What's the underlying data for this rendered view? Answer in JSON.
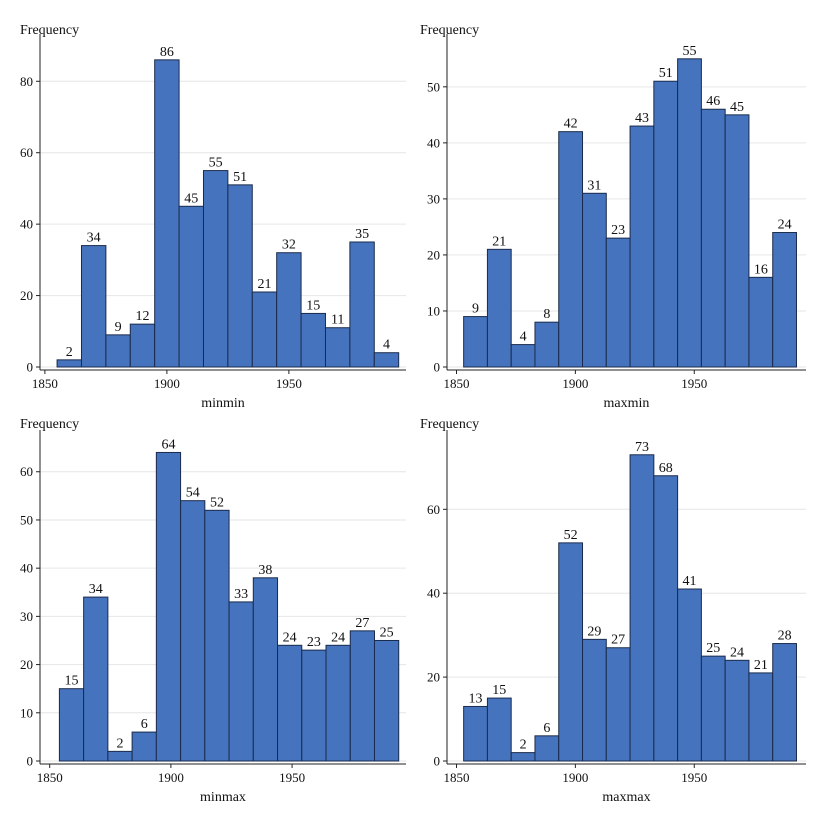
{
  "colors": {
    "bar": "#4673bd",
    "bar_edge": "#1a2b4c",
    "grid": "#e6e6e6",
    "axis": "#222222"
  },
  "chart_data": [
    {
      "type": "bar",
      "ylabel": "Frequency",
      "xlabel": "minmin",
      "bin_edges": [
        1855,
        1865,
        1875,
        1885,
        1895,
        1905,
        1915,
        1925,
        1935,
        1945,
        1955,
        1965,
        1975,
        1985,
        1995
      ],
      "values": [
        2,
        34,
        9,
        12,
        86,
        45,
        55,
        51,
        21,
        32,
        15,
        11,
        35,
        4
      ],
      "xlim": [
        1848,
        1998
      ],
      "ylim": [
        0,
        91
      ],
      "xticks": [
        1850,
        1900,
        1950
      ],
      "yticks": [
        0,
        20,
        40,
        60,
        80
      ],
      "grid": true,
      "show_value_labels": true
    },
    {
      "type": "bar",
      "ylabel": "Frequency",
      "xlabel": "maxmin",
      "bin_edges": [
        1853,
        1863,
        1873,
        1883,
        1893,
        1903,
        1913,
        1923,
        1933,
        1943,
        1953,
        1963,
        1973,
        1983,
        1993
      ],
      "values": [
        9,
        21,
        4,
        8,
        42,
        31,
        23,
        43,
        51,
        55,
        46,
        45,
        16,
        24
      ],
      "xlim": [
        1846,
        1997
      ],
      "ylim": [
        0,
        58
      ],
      "xticks": [
        1850,
        1900,
        1950
      ],
      "yticks": [
        0,
        10,
        20,
        30,
        40,
        50
      ],
      "grid": true,
      "show_value_labels": true
    },
    {
      "type": "bar",
      "ylabel": "Frequency",
      "xlabel": "minmax",
      "bin_edges": [
        1854,
        1864,
        1874,
        1884,
        1894,
        1904,
        1914,
        1924,
        1934,
        1944,
        1954,
        1964,
        1974,
        1984,
        1994
      ],
      "values": [
        15,
        34,
        2,
        6,
        64,
        54,
        52,
        33,
        38,
        24,
        23,
        24,
        27,
        25
      ],
      "xlim": [
        1846,
        1997
      ],
      "ylim": [
        0,
        67
      ],
      "xticks": [
        1850,
        1900,
        1950
      ],
      "yticks": [
        0,
        10,
        20,
        30,
        40,
        50,
        60
      ],
      "grid": true,
      "show_value_labels": true
    },
    {
      "type": "bar",
      "ylabel": "Frequency",
      "xlabel": "maxmax",
      "bin_edges": [
        1853,
        1863,
        1873,
        1883,
        1893,
        1903,
        1913,
        1923,
        1933,
        1943,
        1953,
        1963,
        1973,
        1983,
        1993
      ],
      "values": [
        13,
        15,
        2,
        6,
        52,
        29,
        27,
        73,
        68,
        41,
        25,
        24,
        21,
        28
      ],
      "xlim": [
        1846,
        1997
      ],
      "ylim": [
        0,
        77
      ],
      "xticks": [
        1850,
        1900,
        1950
      ],
      "yticks": [
        0,
        20,
        40,
        60
      ],
      "grid": true,
      "show_value_labels": true
    }
  ]
}
